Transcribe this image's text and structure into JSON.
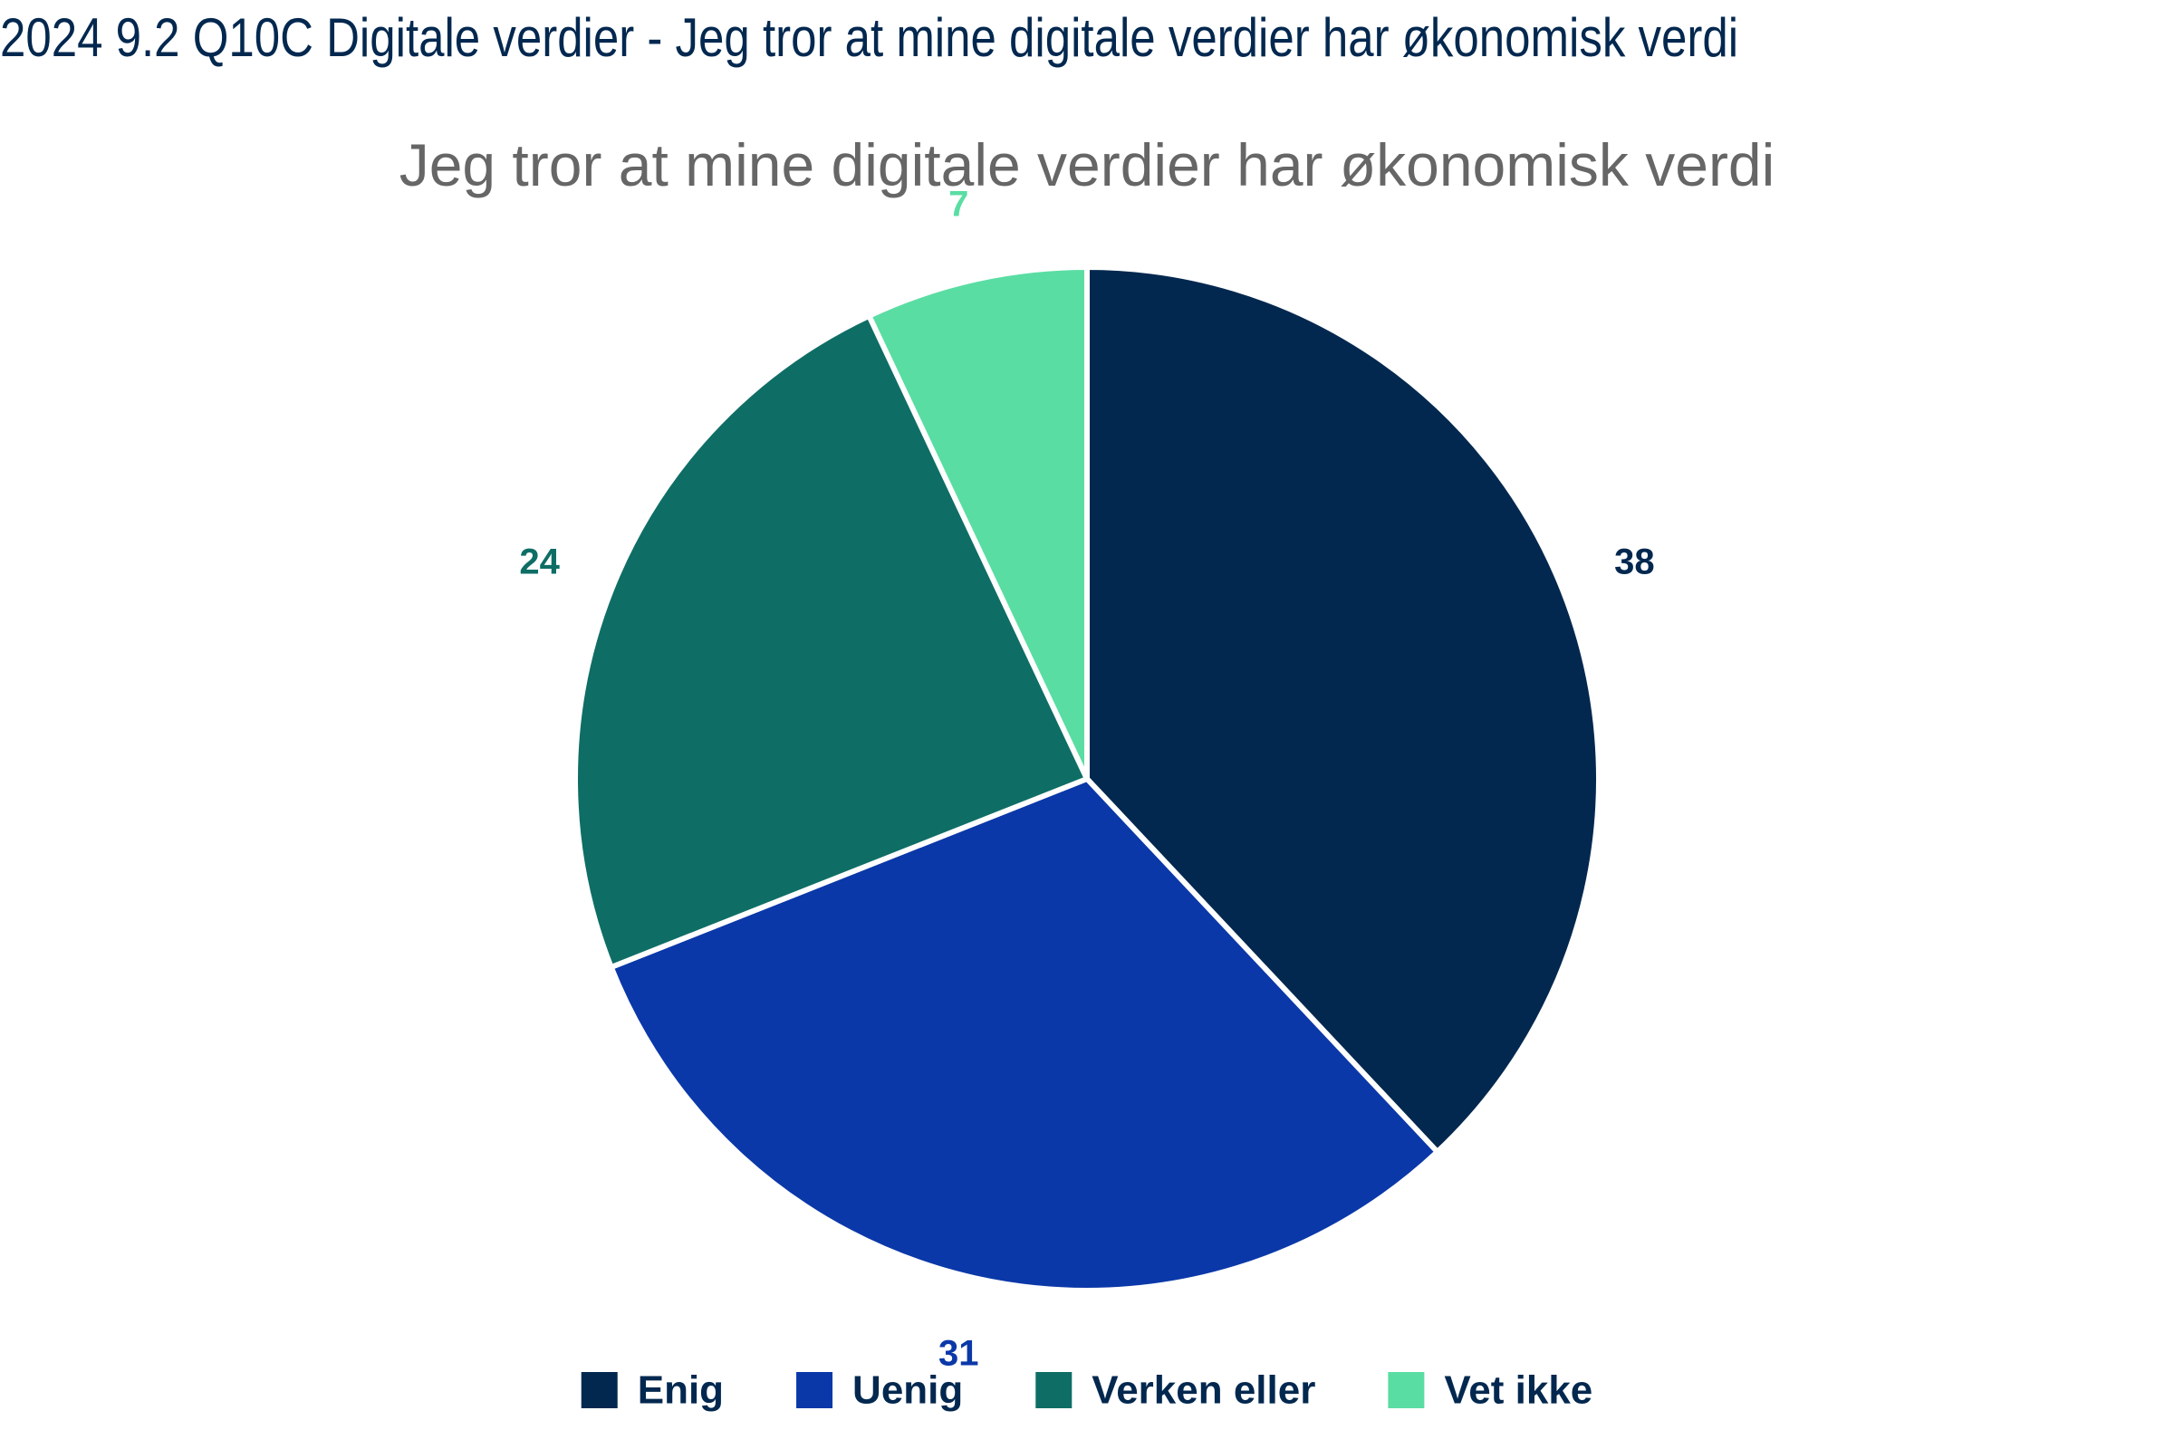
{
  "page": {
    "title": "2024 9.2 Q10C Digitale verdier - Jeg tror at mine digitale verdier har økonomisk verdi"
  },
  "chart_data": {
    "type": "pie",
    "title": "Jeg tror at mine digitale verdier har økonomisk verdi",
    "categories": [
      "Enig",
      "Uenig",
      "Verken  eller",
      "Vet ikke"
    ],
    "values": [
      38,
      31,
      24,
      7
    ],
    "data_labels": [
      "38",
      "31",
      "24",
      "7"
    ],
    "colors": [
      "#03284f",
      "#0b38a8",
      "#0e6e66",
      "#5adda3"
    ],
    "legend": "bottom",
    "start_angle": "top, clockwise"
  }
}
